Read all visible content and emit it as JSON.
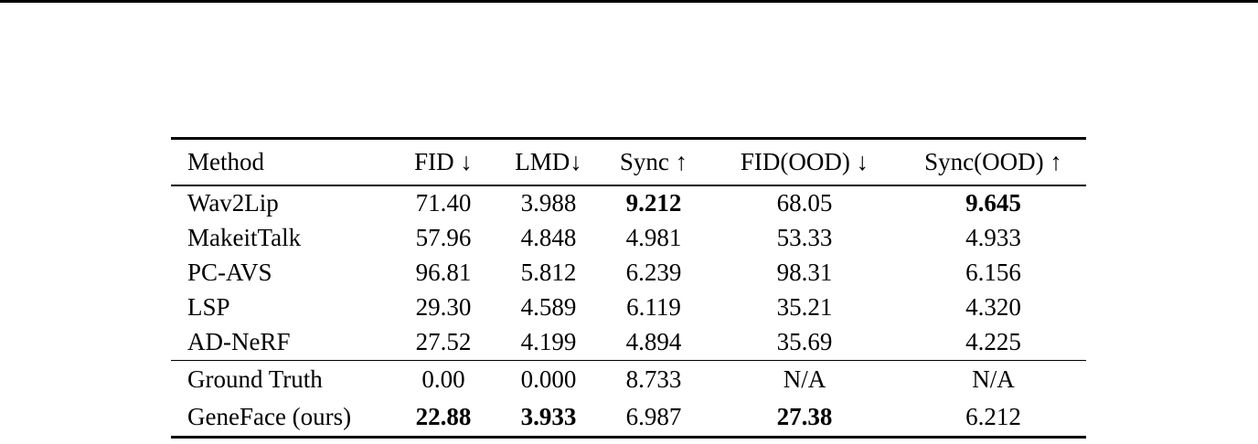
{
  "page": {
    "background": "#ffffff",
    "text_color": "#000000",
    "rule_color": "#000000"
  },
  "table": {
    "columns": [
      {
        "label": "Method"
      },
      {
        "label": "FID ↓"
      },
      {
        "label": "LMD↓"
      },
      {
        "label": "Sync ↑"
      },
      {
        "label": "FID(OOD) ↓"
      },
      {
        "label": "Sync(OOD) ↑"
      }
    ],
    "groups": [
      {
        "rows": [
          {
            "cells": [
              {
                "text": "Wav2Lip"
              },
              {
                "text": "71.40"
              },
              {
                "text": "3.988"
              },
              {
                "text": "9.212",
                "bold": true
              },
              {
                "text": "68.05"
              },
              {
                "text": "9.645",
                "bold": true
              }
            ]
          },
          {
            "cells": [
              {
                "text": "MakeitTalk"
              },
              {
                "text": "57.96"
              },
              {
                "text": "4.848"
              },
              {
                "text": "4.981"
              },
              {
                "text": "53.33"
              },
              {
                "text": "4.933"
              }
            ]
          },
          {
            "cells": [
              {
                "text": "PC-AVS"
              },
              {
                "text": "96.81"
              },
              {
                "text": "5.812"
              },
              {
                "text": "6.239"
              },
              {
                "text": "98.31"
              },
              {
                "text": "6.156"
              }
            ]
          },
          {
            "cells": [
              {
                "text": "LSP"
              },
              {
                "text": "29.30"
              },
              {
                "text": "4.589"
              },
              {
                "text": "6.119"
              },
              {
                "text": "35.21"
              },
              {
                "text": "4.320"
              }
            ]
          },
          {
            "cells": [
              {
                "text": "AD-NeRF"
              },
              {
                "text": "27.52"
              },
              {
                "text": "4.199"
              },
              {
                "text": "4.894"
              },
              {
                "text": "35.69"
              },
              {
                "text": "4.225"
              }
            ]
          }
        ]
      },
      {
        "rows": [
          {
            "cells": [
              {
                "text": "Ground Truth"
              },
              {
                "text": "0.00"
              },
              {
                "text": "0.000"
              },
              {
                "text": "8.733"
              },
              {
                "text": "N/A"
              },
              {
                "text": "N/A"
              }
            ]
          },
          {
            "cells": [
              {
                "text": "GeneFace (ours)"
              },
              {
                "text": "22.88",
                "bold": true
              },
              {
                "text": "3.933",
                "bold": true
              },
              {
                "text": "6.987"
              },
              {
                "text": "27.38",
                "bold": true
              },
              {
                "text": "6.212"
              }
            ]
          }
        ]
      }
    ]
  },
  "chart_data": {
    "type": "table",
    "columns": [
      "Method",
      "FID ↓",
      "LMD↓",
      "Sync ↑",
      "FID(OOD) ↓",
      "Sync(OOD) ↑"
    ],
    "rows": [
      [
        "Wav2Lip",
        "71.40",
        "3.988",
        "9.212",
        "68.05",
        "9.645"
      ],
      [
        "MakeitTalk",
        "57.96",
        "4.848",
        "4.981",
        "53.33",
        "4.933"
      ],
      [
        "PC-AVS",
        "96.81",
        "5.812",
        "6.239",
        "98.31",
        "6.156"
      ],
      [
        "LSP",
        "29.30",
        "4.589",
        "6.119",
        "35.21",
        "4.320"
      ],
      [
        "AD-NeRF",
        "27.52",
        "4.199",
        "4.894",
        "35.69",
        "4.225"
      ],
      [
        "Ground Truth",
        "0.00",
        "0.000",
        "8.733",
        "N/A",
        "N/A"
      ],
      [
        "GeneFace (ours)",
        "22.88",
        "3.933",
        "6.987",
        "27.38",
        "6.212"
      ]
    ],
    "bold_cells": [
      [
        0,
        3
      ],
      [
        0,
        5
      ],
      [
        6,
        1
      ],
      [
        6,
        2
      ],
      [
        6,
        4
      ]
    ]
  }
}
